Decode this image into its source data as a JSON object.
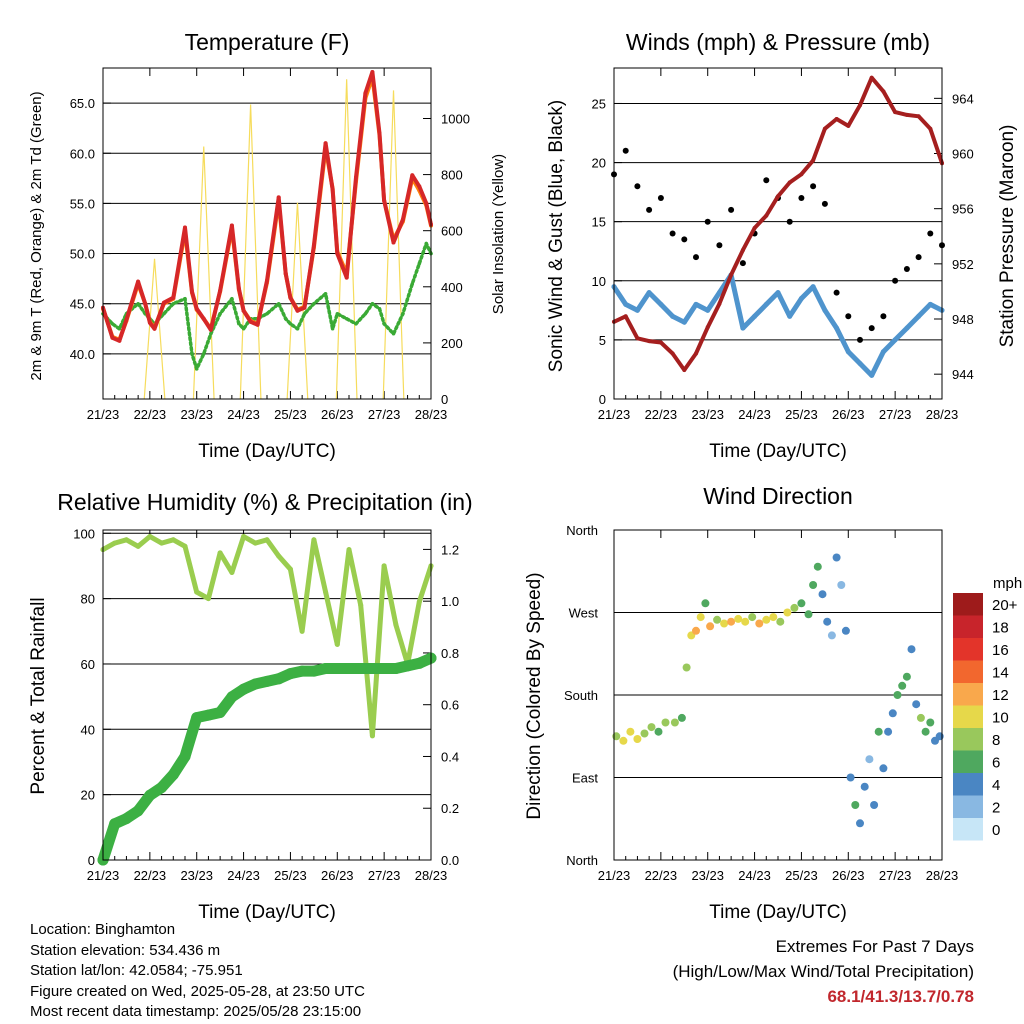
{
  "panels": {
    "temperature": {
      "title": "Temperature (F)",
      "ylabel_left": "2m & 9m T (Red, Orange) & 2m Td (Green)",
      "ylabel_right": "Solar Insolation (Yellow)",
      "xlabel": "Time (Day/UTC)"
    },
    "winds": {
      "title": "Winds (mph) & Pressure (mb)",
      "ylabel_left": "Sonic Wind & Gust (Blue, Black)",
      "ylabel_right": "Station Pressure (Maroon)",
      "xlabel": "Time (Day/UTC)"
    },
    "humidity": {
      "title": "Relative Humidity (%) & Precipitation (in)",
      "ylabel_left": "Percent & Total Rainfall",
      "xlabel": "Time (Day/UTC)"
    },
    "direction": {
      "title": "Wind Direction",
      "ylabel_left": "Direction (Colored By Speed)",
      "xlabel": "Time (Day/UTC)",
      "legend_title": "mph"
    }
  },
  "info": {
    "location": "Location: Binghamton",
    "elevation": "Station elevation: 534.436 m",
    "latlon": "Station lat/lon: 42.0584; -75.951",
    "created": "Figure created on Wed, 2025-05-28, at 23:50 UTC",
    "recent": "Most recent data timestamp: 2025/05/28 23:15:00"
  },
  "extremes": {
    "title": "Extremes For Past 7 Days",
    "subtitle": "(High/Low/Max Wind/Total Precipitation)",
    "values": "68.1/41.3/13.7/0.78"
  },
  "chart_data": [
    {
      "type": "line",
      "panel": "temperature",
      "x_ticks": [
        "21/23",
        "22/23",
        "23/23",
        "24/23",
        "25/23",
        "26/23",
        "27/23",
        "28/23"
      ],
      "x": [
        0,
        0.2,
        0.35,
        0.5,
        0.75,
        0.9,
        1.0,
        1.1,
        1.3,
        1.5,
        1.75,
        1.9,
        2.0,
        2.15,
        2.3,
        2.5,
        2.75,
        2.9,
        3.0,
        3.15,
        3.3,
        3.5,
        3.75,
        3.9,
        4.0,
        4.15,
        4.3,
        4.5,
        4.75,
        4.9,
        5.0,
        5.2,
        5.4,
        5.6,
        5.75,
        5.9,
        6.0,
        6.2,
        6.4,
        6.6,
        6.75,
        6.9,
        7.0
      ],
      "ylim_left": [
        35.5,
        68.5
      ],
      "ylim_right": [
        0,
        1180
      ],
      "y_ticks_left": [
        40.0,
        45.0,
        50.0,
        55.0,
        60.0,
        65.0
      ],
      "y_ticks_right": [
        0,
        200,
        400,
        600,
        800,
        1000
      ],
      "series": [
        {
          "name": "2m T",
          "color": "#d62728",
          "values": [
            44.6,
            41.6,
            41.3,
            43.4,
            47.2,
            45.0,
            43.1,
            42.5,
            45.1,
            45.6,
            52.6,
            46.2,
            44.5,
            43.5,
            42.4,
            46.3,
            52.8,
            46.5,
            44.3,
            43.2,
            42.9,
            47.3,
            55.6,
            48.0,
            45.6,
            44.3,
            44.6,
            50.8,
            61.0,
            56.4,
            50.0,
            47.6,
            57.6,
            66.0,
            68.1,
            62.0,
            55.3,
            51.1,
            53.4,
            57.8,
            56.7,
            55.0,
            52.9
          ]
        },
        {
          "name": "9m T",
          "color": "#ff7f0e",
          "values": [
            44.5,
            41.7,
            41.4,
            43.3,
            47.0,
            45.0,
            43.2,
            42.6,
            45.0,
            45.5,
            52.2,
            46.1,
            44.4,
            43.5,
            42.5,
            46.2,
            52.5,
            46.4,
            44.3,
            43.3,
            43.0,
            47.1,
            55.2,
            48.0,
            45.6,
            44.4,
            44.7,
            50.6,
            60.5,
            56.5,
            50.2,
            48.0,
            57.2,
            65.5,
            67.6,
            61.8,
            55.3,
            51.4,
            53.2,
            57.5,
            56.3,
            54.8,
            52.8
          ]
        },
        {
          "name": "2m Td",
          "color": "#3aaa35",
          "values": [
            44.0,
            43.0,
            42.5,
            44.0,
            45.0,
            44.0,
            43.5,
            43.0,
            44.0,
            45.0,
            45.5,
            40.0,
            38.5,
            40.0,
            42.0,
            44.0,
            45.5,
            43.0,
            42.5,
            43.5,
            43.5,
            44.0,
            45.0,
            43.5,
            43.0,
            42.5,
            44.0,
            45.0,
            46.0,
            42.5,
            44.0,
            43.5,
            43.0,
            44.0,
            45.0,
            44.5,
            43.0,
            42.0,
            44.0,
            47.0,
            49.0,
            51.0,
            50.0
          ]
        },
        {
          "name": "Solar Insolation",
          "color": "#f6dc5c",
          "values": [
            0,
            0,
            0,
            0,
            0,
            0,
            0,
            500,
            0,
            0,
            0,
            0,
            0,
            900,
            0,
            0,
            0,
            0,
            0,
            1050,
            0,
            0,
            0,
            0,
            0,
            700,
            0,
            0,
            0,
            0,
            0,
            1140,
            0,
            0,
            0,
            0,
            0,
            1100,
            0,
            0,
            0,
            0,
            0
          ]
        }
      ]
    },
    {
      "type": "line",
      "panel": "winds",
      "x_ticks": [
        "21/23",
        "22/23",
        "23/23",
        "24/23",
        "25/23",
        "26/23",
        "27/23",
        "28/23"
      ],
      "x": [
        0,
        0.25,
        0.5,
        0.75,
        1.0,
        1.25,
        1.5,
        1.75,
        2.0,
        2.25,
        2.5,
        2.75,
        3.0,
        3.25,
        3.5,
        3.75,
        4.0,
        4.25,
        4.5,
        4.75,
        5.0,
        5.25,
        5.5,
        5.75,
        6.0,
        6.25,
        6.5,
        6.75,
        7.0
      ],
      "ylim_left": [
        0,
        28
      ],
      "ylim_right": [
        942.2,
        966.2
      ],
      "y_ticks_left": [
        0,
        5,
        10,
        15,
        20,
        25
      ],
      "y_ticks_right": [
        944,
        948,
        952,
        956,
        960,
        964
      ],
      "series": [
        {
          "name": "Sonic Wind",
          "color": "#4f94cd",
          "values": [
            9.5,
            8.0,
            7.5,
            9.0,
            8.0,
            7.0,
            6.5,
            8.0,
            7.5,
            9.0,
            10.5,
            6.0,
            7.0,
            8.0,
            9.0,
            7.0,
            8.5,
            9.5,
            7.5,
            6.0,
            4.0,
            3.0,
            2.0,
            4.0,
            5.0,
            6.0,
            7.0,
            8.0,
            7.5
          ]
        },
        {
          "name": "Gust",
          "color": "#000000",
          "values": [
            19.0,
            21.0,
            18.0,
            16.0,
            17.0,
            14.0,
            13.5,
            12.0,
            15.0,
            13.0,
            16.0,
            11.5,
            14.0,
            18.5,
            17.0,
            15.0,
            17.0,
            18.0,
            16.5,
            9.0,
            7.0,
            5.0,
            6.0,
            7.0,
            10.0,
            11.0,
            12.0,
            14.0,
            13.0
          ]
        },
        {
          "name": "Station Pressure",
          "color": "#a51f1f",
          "values": [
            947.8,
            948.2,
            946.6,
            946.4,
            946.3,
            945.5,
            944.3,
            945.5,
            947.4,
            949.1,
            951.2,
            953.0,
            954.6,
            955.5,
            956.9,
            957.9,
            958.5,
            959.5,
            961.8,
            962.5,
            962.0,
            963.5,
            965.5,
            964.5,
            963.0,
            962.8,
            962.7,
            961.8,
            959.3
          ]
        }
      ]
    },
    {
      "type": "line",
      "panel": "humidity",
      "x_ticks": [
        "21/23",
        "22/23",
        "23/23",
        "24/23",
        "25/23",
        "26/23",
        "27/23",
        "28/23"
      ],
      "x": [
        0,
        0.25,
        0.5,
        0.75,
        1.0,
        1.25,
        1.5,
        1.75,
        2.0,
        2.25,
        2.5,
        2.75,
        3.0,
        3.25,
        3.5,
        3.75,
        4.0,
        4.25,
        4.5,
        4.75,
        5.0,
        5.25,
        5.5,
        5.75,
        6.0,
        6.25,
        6.5,
        6.75,
        7.0
      ],
      "ylim_left": [
        0,
        101
      ],
      "ylim_right": [
        0,
        1.275
      ],
      "y_ticks_left": [
        0,
        20,
        40,
        60,
        80,
        100
      ],
      "y_ticks_right": [
        0.0,
        0.2,
        0.4,
        0.6,
        0.8,
        1.0,
        1.2
      ],
      "series": [
        {
          "name": "Relative Humidity",
          "color": "#9acd4f",
          "values": [
            95,
            97,
            98,
            96,
            99,
            97,
            98,
            96,
            82,
            80,
            94,
            88,
            99,
            97,
            98,
            93,
            89,
            70,
            98,
            82,
            66,
            95,
            78,
            38,
            90,
            72,
            60,
            79,
            90
          ]
        },
        {
          "name": "Total Precipitation",
          "color": "#3cb043",
          "values": [
            0.0,
            0.14,
            0.16,
            0.19,
            0.25,
            0.28,
            0.33,
            0.4,
            0.55,
            0.56,
            0.57,
            0.63,
            0.66,
            0.68,
            0.69,
            0.7,
            0.72,
            0.73,
            0.73,
            0.74,
            0.74,
            0.74,
            0.74,
            0.74,
            0.74,
            0.74,
            0.75,
            0.76,
            0.78
          ]
        }
      ]
    },
    {
      "type": "scatter",
      "panel": "direction",
      "x_ticks": [
        "21/23",
        "22/23",
        "23/23",
        "24/23",
        "25/23",
        "26/23",
        "27/23",
        "28/23"
      ],
      "y_ticks": [
        "North",
        "East",
        "South",
        "West",
        "North"
      ],
      "ylim": [
        0,
        360
      ],
      "colorbar": {
        "title": "mph",
        "labels": [
          "20+",
          "18",
          "16",
          "14",
          "12",
          "10",
          "8",
          "6",
          "4",
          "2",
          "0"
        ],
        "colors": [
          "#9e1b1b",
          "#c8242b",
          "#e3342a",
          "#f2672e",
          "#f9a84c",
          "#e6d84a",
          "#99c85c",
          "#4fa85f",
          "#4a86c3",
          "#89b8e2",
          "#c7e6f7"
        ]
      },
      "series": [
        {
          "name": "Direction",
          "values": [
            [
              0.05,
              135,
              8
            ],
            [
              0.2,
              130,
              10
            ],
            [
              0.35,
              140,
              9
            ],
            [
              0.5,
              132,
              10
            ],
            [
              0.65,
              138,
              7
            ],
            [
              0.8,
              145,
              8
            ],
            [
              0.95,
              140,
              6
            ],
            [
              1.1,
              150,
              7
            ],
            [
              1.3,
              150,
              8
            ],
            [
              1.45,
              155,
              6
            ],
            [
              1.55,
              210,
              7
            ],
            [
              1.65,
              245,
              10
            ],
            [
              1.75,
              250,
              12
            ],
            [
              1.85,
              265,
              9
            ],
            [
              1.95,
              280,
              6
            ],
            [
              2.05,
              255,
              11
            ],
            [
              2.2,
              262,
              8
            ],
            [
              2.35,
              258,
              10
            ],
            [
              2.5,
              260,
              12
            ],
            [
              2.65,
              263,
              9
            ],
            [
              2.8,
              260,
              10
            ],
            [
              2.95,
              265,
              8
            ],
            [
              3.1,
              258,
              12
            ],
            [
              3.25,
              262,
              10
            ],
            [
              3.4,
              265,
              9
            ],
            [
              3.55,
              260,
              7
            ],
            [
              3.7,
              270,
              9
            ],
            [
              3.85,
              275,
              8
            ],
            [
              4.0,
              280,
              6
            ],
            [
              4.15,
              268,
              5
            ],
            [
              4.25,
              300,
              6
            ],
            [
              4.35,
              320,
              5
            ],
            [
              4.45,
              290,
              4
            ],
            [
              4.55,
              260,
              4
            ],
            [
              4.65,
              245,
              2
            ],
            [
              4.75,
              330,
              3
            ],
            [
              4.85,
              300,
              2
            ],
            [
              4.95,
              250,
              4
            ],
            [
              5.05,
              90,
              4
            ],
            [
              5.15,
              60,
              5
            ],
            [
              5.25,
              40,
              4
            ],
            [
              5.35,
              80,
              3
            ],
            [
              5.45,
              110,
              2
            ],
            [
              5.55,
              60,
              4
            ],
            [
              5.65,
              140,
              5
            ],
            [
              5.75,
              100,
              4
            ],
            [
              5.85,
              140,
              4
            ],
            [
              5.95,
              160,
              3
            ],
            [
              6.05,
              180,
              6
            ],
            [
              6.15,
              190,
              5
            ],
            [
              6.25,
              200,
              6
            ],
            [
              6.35,
              230,
              4
            ],
            [
              6.45,
              170,
              4
            ],
            [
              6.55,
              155,
              8
            ],
            [
              6.65,
              140,
              6
            ],
            [
              6.75,
              150,
              5
            ],
            [
              6.85,
              130,
              4
            ],
            [
              6.95,
              135,
              4
            ]
          ]
        }
      ]
    }
  ]
}
